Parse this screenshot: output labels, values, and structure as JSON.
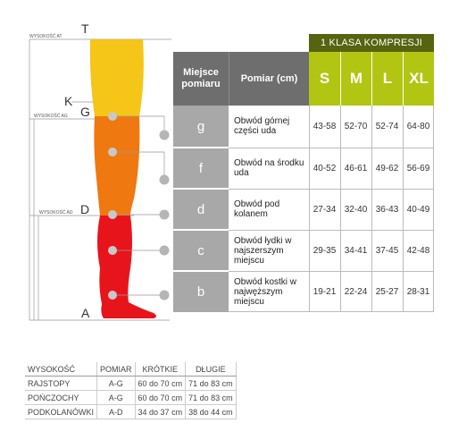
{
  "klasa": "1 KLASA KOMPRESJI",
  "headers": {
    "miejsce": "Miejsce pomiaru",
    "pomiar": "Pomiar (cm)"
  },
  "sizes": [
    "S",
    "M",
    "L",
    "XL"
  ],
  "rows": [
    {
      "letter": "g",
      "desc": "Obwód górnej części uda",
      "values": [
        "43-58",
        "52-70",
        "52-74",
        "64-80"
      ]
    },
    {
      "letter": "f",
      "desc": "Obwód na środku uda",
      "values": [
        "40-52",
        "46-61",
        "49-62",
        "56-69"
      ]
    },
    {
      "letter": "d",
      "desc": "Obwód pod kolanem",
      "values": [
        "27-34",
        "32-40",
        "36-43",
        "40-49"
      ]
    },
    {
      "letter": "c",
      "desc": "Obwód łydki w najszerszym miejscu",
      "values": [
        "29-35",
        "34-41",
        "37-45",
        "42-48"
      ]
    },
    {
      "letter": "b",
      "desc": "Obwód kostki w najwęższym miejscu",
      "values": [
        "19-21",
        "22-24",
        "25-27",
        "28-31"
      ]
    }
  ],
  "leg": {
    "labels": {
      "T": "T",
      "K": "K",
      "G": "G",
      "D": "D",
      "A": "A"
    },
    "heights": {
      "at": "WYSOKOŚĆ AT",
      "ag": "WYSOKOŚĆ AG",
      "ad": "WYSOKOŚĆ AD"
    },
    "colors": {
      "top": "#f5c518",
      "thigh": "#f07810",
      "lower": "#e8141c"
    }
  },
  "small_table": {
    "headers": [
      "WYSOKOŚĆ",
      "POMIAR",
      "KRÓTKIE",
      "DŁUGIE"
    ],
    "rows": [
      [
        "RAJSTOPY",
        "A-G",
        "60 do 70 cm",
        "71 do 83 cm"
      ],
      [
        "POŃCZOCHY",
        "A-G",
        "60 do 70 cm",
        "71 do 83 cm"
      ],
      [
        "PODKOLANÓWKI",
        "A-D",
        "34 do 37 cm",
        "38 do 44 cm"
      ]
    ]
  }
}
